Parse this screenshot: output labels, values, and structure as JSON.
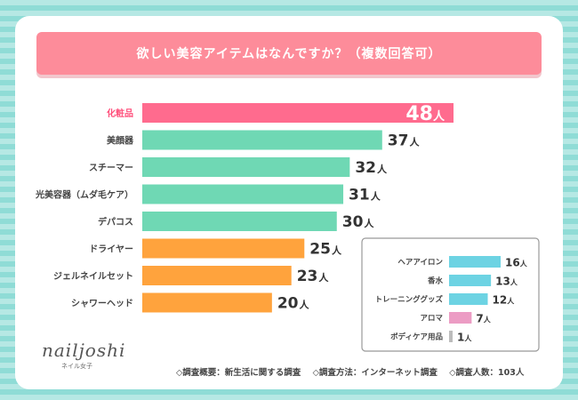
{
  "title": "欲しい美容アイテムはなんですか？（複数回答可）",
  "chart_data": {
    "type": "bar",
    "orientation": "horizontal",
    "title": "欲しい美容アイテムはなんですか？（複数回答可）",
    "unit": "人",
    "main": [
      {
        "label": "化粧品",
        "value": 48,
        "color": "#ff6b8e",
        "label_color": "#ff4f7b"
      },
      {
        "label": "美顔器",
        "value": 37,
        "color": "#6fd8b4",
        "label_color": "#444444"
      },
      {
        "label": "スチーマー",
        "value": 32,
        "color": "#6fd8b4",
        "label_color": "#444444"
      },
      {
        "label": "光美容器（ムダ毛ケア）",
        "value": 31,
        "color": "#6fd8b4",
        "label_color": "#444444"
      },
      {
        "label": "デパコス",
        "value": 30,
        "color": "#6fd8b4",
        "label_color": "#444444"
      },
      {
        "label": "ドライヤー",
        "value": 25,
        "color": "#ffa33d",
        "label_color": "#444444"
      },
      {
        "label": "ジェルネイルセット",
        "value": 23,
        "color": "#ffa33d",
        "label_color": "#444444"
      },
      {
        "label": "シャワーヘッド",
        "value": 20,
        "color": "#ffa33d",
        "label_color": "#444444"
      }
    ],
    "inset": [
      {
        "label": "ヘアアイロン",
        "value": 16,
        "color": "#6dd3e3"
      },
      {
        "label": "香水",
        "value": 13,
        "color": "#6dd3e3"
      },
      {
        "label": "トレーニンググッズ",
        "value": 12,
        "color": "#6dd3e3"
      },
      {
        "label": "アロマ",
        "value": 7,
        "color": "#ec9cc4"
      },
      {
        "label": "ボディケア用品",
        "value": 1,
        "color": "#bcbcbc"
      }
    ]
  },
  "logo": {
    "main": "nailjoshi",
    "sub": "ネイル女子"
  },
  "footer": {
    "overview": "◇調査概要：新生活に関する調査",
    "method": "◇調査方法：インターネット調査",
    "count": "◇調査人数：103人"
  }
}
